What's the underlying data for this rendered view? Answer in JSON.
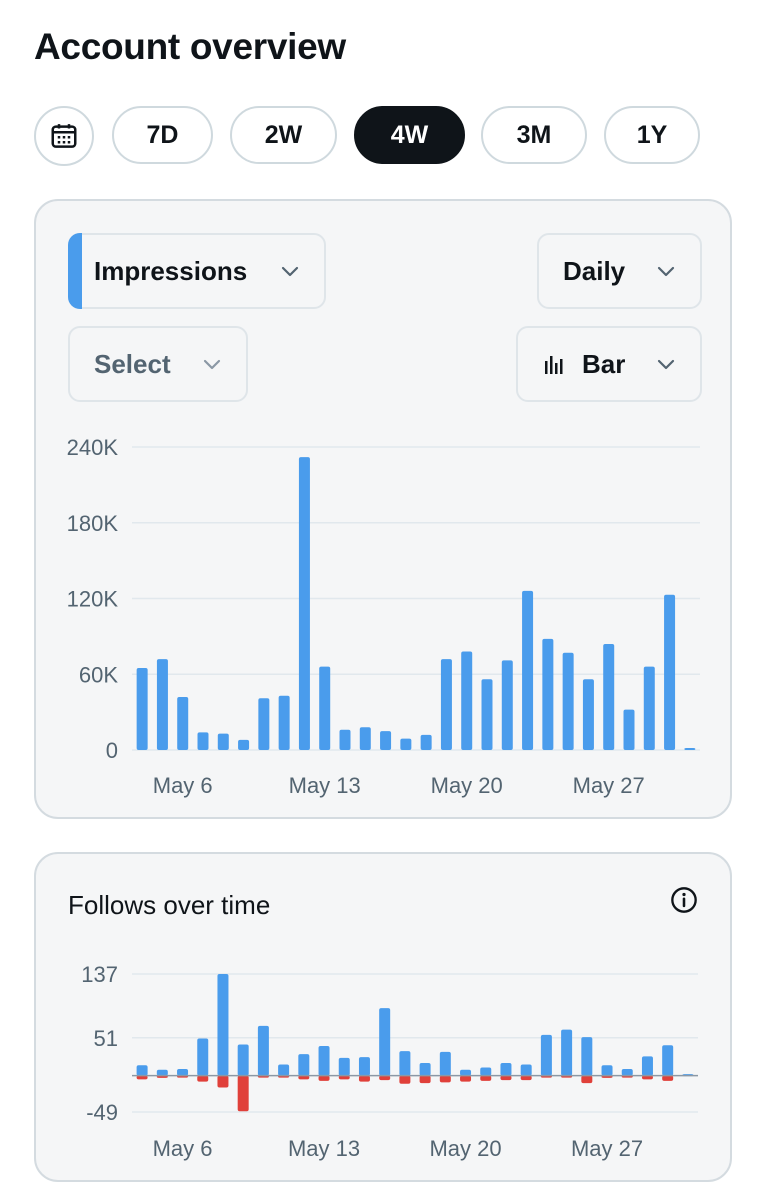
{
  "page": {
    "title": "Account overview"
  },
  "ranges": {
    "calendar_icon": "calendar-icon",
    "options": [
      "7D",
      "2W",
      "4W",
      "3M",
      "1Y"
    ],
    "selected": "4W"
  },
  "impressions_card": {
    "metric_select": "Impressions",
    "interval_select": "Daily",
    "compare_select": "Select",
    "chart_type_select": "Bar",
    "chart_type_icon": "bar-chart-icon",
    "accent_color": "#4a9cec"
  },
  "follows_card": {
    "title": "Follows over time",
    "info_icon": "info-icon"
  },
  "chart_data": [
    {
      "type": "bar",
      "metric": "Impressions",
      "x_tick_labels": [
        "May 6",
        "May 13",
        "May 20",
        "May 27"
      ],
      "y_tick_labels": [
        "0",
        "60K",
        "120K",
        "180K",
        "240K"
      ],
      "ylim": [
        0,
        240000
      ],
      "grid": true,
      "color": "#4a9cec",
      "values": [
        65000,
        72000,
        42000,
        14000,
        13000,
        8000,
        41000,
        43000,
        232000,
        66000,
        16000,
        18000,
        15000,
        9000,
        12000,
        72000,
        78000,
        56000,
        71000,
        126000,
        88000,
        77000,
        56000,
        84000,
        32000,
        66000,
        123000,
        1500
      ]
    },
    {
      "type": "bar",
      "metric": "Follows",
      "x_tick_labels": [
        "May 6",
        "May 13",
        "May 20",
        "May 27"
      ],
      "y_tick_labels": [
        "137",
        "51",
        "-49"
      ],
      "ylim": [
        -49,
        137
      ],
      "grid": true,
      "series": [
        {
          "color": "#4a9cec",
          "values": [
            14,
            8,
            9,
            50,
            137,
            42,
            67,
            15,
            29,
            40,
            24,
            25,
            91,
            33,
            17,
            32,
            8,
            11,
            17,
            15,
            55,
            62,
            52,
            14,
            9,
            26,
            41,
            2
          ]
        },
        {
          "color": "#e0403a",
          "values": [
            -5,
            -3,
            -2,
            -8,
            -16,
            -48,
            -2,
            -2,
            -5,
            -7,
            -5,
            -8,
            -6,
            -11,
            -10,
            -9,
            -8,
            -7,
            -6,
            -6,
            -1,
            -2,
            -10,
            -3,
            -2,
            -5,
            -7,
            0
          ]
        }
      ]
    }
  ]
}
